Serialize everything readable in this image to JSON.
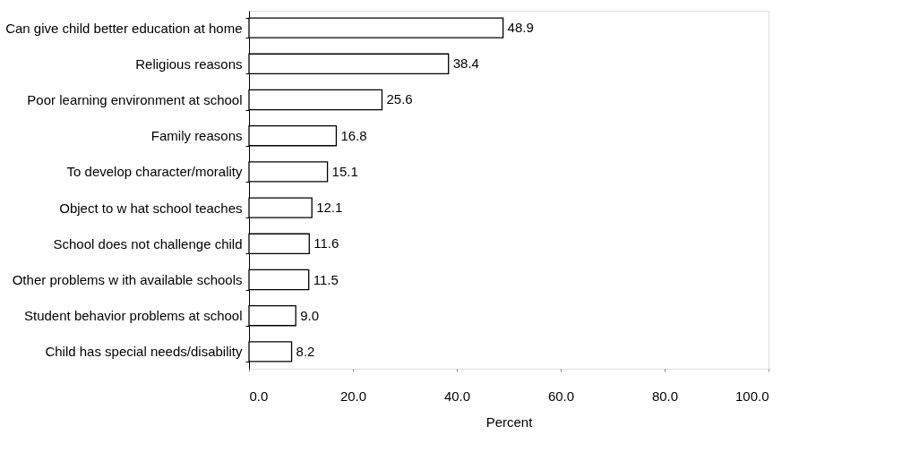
{
  "chart_data": {
    "type": "bar",
    "orientation": "horizontal",
    "xlabel": "Percent",
    "categories": [
      "Can give child better education at home",
      "Religious reasons",
      "Poor learning environment at school",
      "Family reasons",
      "To develop character/morality",
      "Object to w hat school teaches",
      "School does not challenge child",
      "Other problems w ith available schools",
      "Student behavior problems at school",
      "Child has special needs/disability"
    ],
    "values": [
      48.9,
      38.4,
      25.6,
      16.8,
      15.1,
      12.1,
      11.6,
      11.5,
      9.0,
      8.2
    ],
    "value_labels": [
      "48.9",
      "38.4",
      "25.6",
      "16.8",
      "15.1",
      "12.1",
      "11.6",
      "11.5",
      "9.0",
      "8.2"
    ],
    "color": "#ffffff",
    "xlim": [
      0,
      100
    ],
    "xticks": [
      {
        "value": 0,
        "label": "0.0"
      },
      {
        "value": 20,
        "label": "20.0"
      },
      {
        "value": 40,
        "label": "40.0"
      },
      {
        "value": 60,
        "label": "60.0"
      },
      {
        "value": 80,
        "label": "80.0"
      },
      {
        "value": 100,
        "label": "100.0"
      }
    ],
    "grid": false
  }
}
